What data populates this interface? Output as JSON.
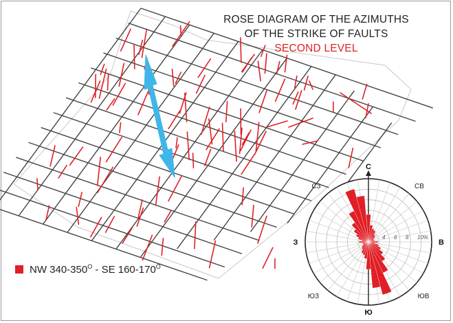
{
  "title": {
    "line1": "ROSE DIAGRAM OF THE AZIMUTHS",
    "line2": "OF THE STRIKE OF FAULTS",
    "line3": "SECOND LEVEL"
  },
  "legend": {
    "text": "NW 340-350",
    "deg1": "O",
    "mid": " - SE 160-170",
    "deg2": "O",
    "color": "#e01f26"
  },
  "arrow_color": "#3fb6e8",
  "rose": {
    "north": "С",
    "south": "Ю",
    "east": "В",
    "west": "З",
    "northeast": "СВ",
    "northwest": "СЗ",
    "southeast": "ЮВ",
    "southwest": "ЮЗ",
    "scale": [
      "4",
      "6",
      "8",
      "10%"
    ],
    "petal_color": "#e01f26"
  }
}
